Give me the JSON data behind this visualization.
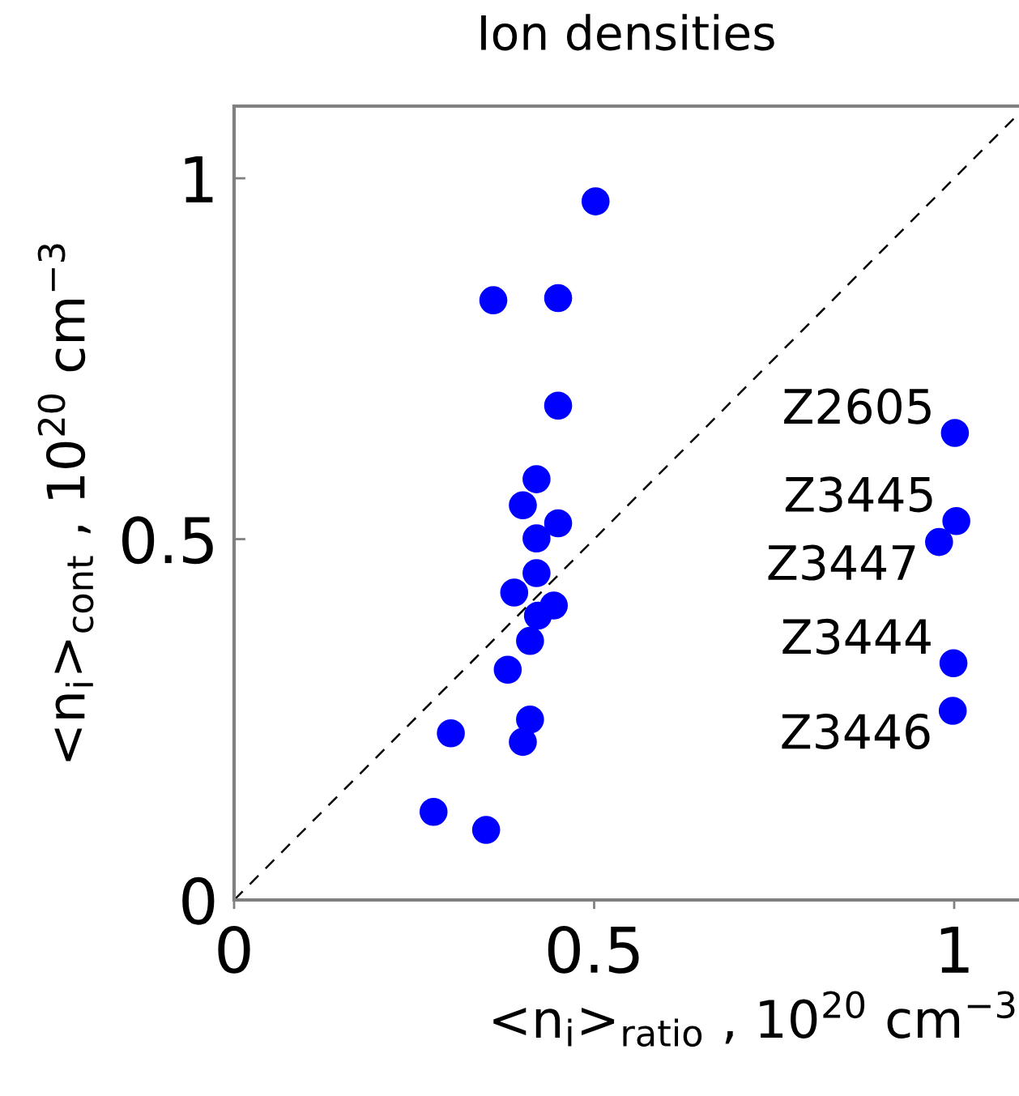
{
  "chart_data": {
    "type": "scatter",
    "title": "Ion densities",
    "xlabel": "<n$_{i}$>$_{ratio}$ , 10$^{20}$ cm$^{−3}$",
    "ylabel": "<n$_{i}$>$_{cont}$ , 10$^{20}$ cm$^{−3}$",
    "xlim": [
      0,
      1.09
    ],
    "ylim": [
      0,
      1.1
    ],
    "xticks": [
      0,
      0.5,
      1
    ],
    "yticks": [
      0,
      0.5,
      1
    ],
    "grid": false,
    "legend": false,
    "series": [
      {
        "color": "#0000ff",
        "marker": "circle",
        "x": [
          0.502,
          0.36,
          0.45,
          0.45,
          0.42,
          0.401,
          0.45,
          0.42,
          0.42,
          0.389,
          0.444,
          0.422,
          0.411,
          0.38,
          0.411,
          0.401,
          0.301,
          0.277,
          0.35,
          1.001,
          1.003,
          0.979,
          0.999,
          0.998
        ],
        "values": [
          0.968,
          0.831,
          0.834,
          0.685,
          0.583,
          0.547,
          0.522,
          0.501,
          0.453,
          0.426,
          0.408,
          0.394,
          0.359,
          0.319,
          0.25,
          0.219,
          0.231,
          0.122,
          0.097,
          0.647,
          0.525,
          0.496,
          0.328,
          0.262
        ]
      },
      {
        "type": "line",
        "color": "#000000",
        "marker": "none",
        "line_style": "dashed",
        "x": [
          0,
          1.09
        ],
        "values": [
          0,
          1.09
        ]
      }
    ],
    "annotations": [
      {
        "text": "Z2605",
        "x": 1.001,
        "y": 0.647
      },
      {
        "text": "Z3445",
        "x": 1.003,
        "y": 0.525
      },
      {
        "text": "Z3447",
        "x": 0.979,
        "y": 0.496
      },
      {
        "text": "Z3444",
        "x": 0.999,
        "y": 0.328
      },
      {
        "text": "Z3446",
        "x": 0.998,
        "y": 0.262
      }
    ]
  }
}
